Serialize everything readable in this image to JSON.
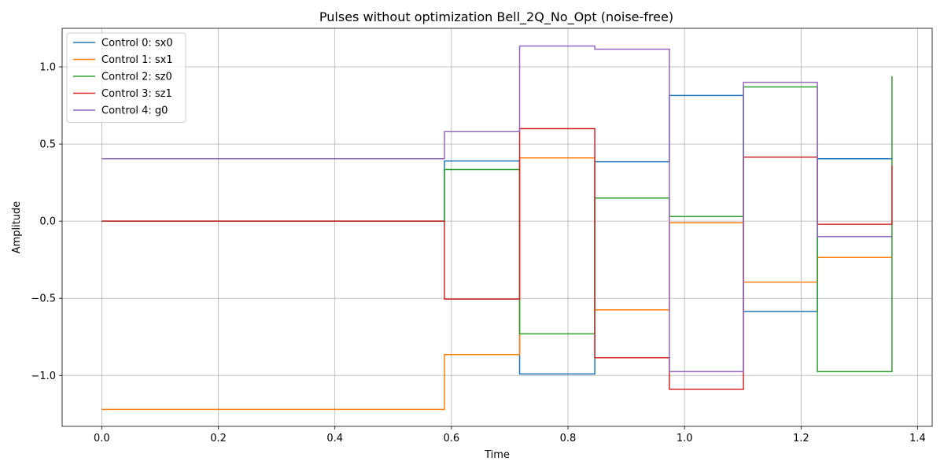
{
  "chart_data": {
    "type": "line",
    "step": true,
    "title": "Pulses without optimization Bell_2Q_No_Opt (noise-free)",
    "xlabel": "Time",
    "ylabel": "Amplitude",
    "xlim": [
      -0.068,
      1.425
    ],
    "ylim": [
      -1.33,
      1.25
    ],
    "xticks": [
      0.0,
      0.2,
      0.4,
      0.6,
      0.8,
      1.0,
      1.2,
      1.4
    ],
    "xtick_labels": [
      "0.0",
      "0.2",
      "0.4",
      "0.6",
      "0.8",
      "1.0",
      "1.2",
      "1.4"
    ],
    "yticks": [
      -1.0,
      -0.5,
      0.0,
      0.5,
      1.0
    ],
    "ytick_labels": [
      "−1.0",
      "−0.5",
      "0.0",
      "0.5",
      "1.0"
    ],
    "grid": true,
    "legend_position": "upper-left",
    "x": [
      0.0,
      0.588,
      0.717,
      0.846,
      0.974,
      1.101,
      1.228,
      1.356
    ],
    "series": [
      {
        "name": "Control 0: sx0",
        "color": "#1f77b4",
        "values": [
          0.0,
          0.39,
          -0.99,
          0.385,
          0.815,
          -0.585,
          0.405,
          0.405
        ]
      },
      {
        "name": "Control 1: sx1",
        "color": "#ff7f0e",
        "values": [
          -1.22,
          -0.865,
          0.41,
          -0.575,
          -0.01,
          -0.395,
          -0.235,
          -0.235
        ]
      },
      {
        "name": "Control 2: sz0",
        "color": "#2ca02c",
        "values": [
          0.0,
          0.335,
          -0.73,
          0.15,
          0.03,
          0.87,
          -0.975,
          0.94
        ]
      },
      {
        "name": "Control 3: sz1",
        "color": "#d62728",
        "values": [
          0.0,
          -0.505,
          0.6,
          -0.885,
          -1.09,
          0.415,
          -0.02,
          0.36
        ]
      },
      {
        "name": "Control 4: g0",
        "color": "#9467bd",
        "values": [
          0.405,
          0.58,
          1.135,
          1.115,
          -0.975,
          0.9,
          -0.1,
          -0.1
        ]
      }
    ]
  }
}
